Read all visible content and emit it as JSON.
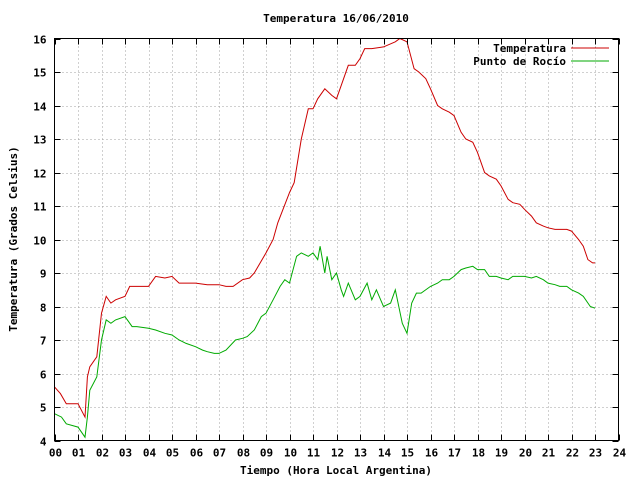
{
  "chart_data": {
    "type": "line",
    "title": "Temperatura 16/06/2010",
    "xlabel": "Tiempo (Hora Local Argentina)",
    "ylabel": "Temperatura (Grados Celsius)",
    "xlim": [
      0,
      24
    ],
    "ylim": [
      4,
      16
    ],
    "grid": true,
    "legend_position": "top-right",
    "x_ticks": [
      "00",
      "01",
      "02",
      "03",
      "04",
      "05",
      "06",
      "07",
      "08",
      "09",
      "10",
      "11",
      "12",
      "13",
      "14",
      "15",
      "16",
      "17",
      "18",
      "19",
      "20",
      "21",
      "22",
      "23",
      "24"
    ],
    "y_ticks": [
      "4",
      "5",
      "6",
      "7",
      "8",
      "9",
      "10",
      "11",
      "12",
      "13",
      "14",
      "15",
      "16"
    ],
    "series": [
      {
        "name": "Temperatura",
        "color": "#cc0000",
        "x": [
          0,
          0.25,
          0.5,
          1,
          1.3,
          1.4,
          1.5,
          1.8,
          2.0,
          2.2,
          2.4,
          2.6,
          3.0,
          3.2,
          3.5,
          4.0,
          4.3,
          4.7,
          5.0,
          5.3,
          6.0,
          6.5,
          7.0,
          7.3,
          7.6,
          8.0,
          8.3,
          8.5,
          9.0,
          9.3,
          9.5,
          10.0,
          10.2,
          10.5,
          10.8,
          11.0,
          11.2,
          11.5,
          11.8,
          12.0,
          12.3,
          12.5,
          12.8,
          13.0,
          13.2,
          13.5,
          14.0,
          14.5,
          14.7,
          15.0,
          15.3,
          15.5,
          15.8,
          16.0,
          16.3,
          16.5,
          16.8,
          17.0,
          17.3,
          17.5,
          17.8,
          18.0,
          18.3,
          18.5,
          18.8,
          19.0,
          19.3,
          19.5,
          19.8,
          20.0,
          20.3,
          20.5,
          20.8,
          21.0,
          21.3,
          21.5,
          21.8,
          22.0,
          22.3,
          22.5,
          22.7,
          22.9,
          23.0
        ],
        "values": [
          5.6,
          5.4,
          5.1,
          5.1,
          4.7,
          5.9,
          6.2,
          6.5,
          7.8,
          8.3,
          8.1,
          8.2,
          8.3,
          8.6,
          8.6,
          8.6,
          8.9,
          8.85,
          8.9,
          8.7,
          8.7,
          8.65,
          8.65,
          8.6,
          8.6,
          8.8,
          8.85,
          9.0,
          9.6,
          10.0,
          10.5,
          11.4,
          11.7,
          13.0,
          13.9,
          13.9,
          14.2,
          14.5,
          14.3,
          14.2,
          14.8,
          15.2,
          15.2,
          15.4,
          15.7,
          15.7,
          15.75,
          15.9,
          16.0,
          15.9,
          15.1,
          15.0,
          14.8,
          14.5,
          14.0,
          13.9,
          13.8,
          13.7,
          13.2,
          13.0,
          12.9,
          12.6,
          12.0,
          11.9,
          11.8,
          11.6,
          11.2,
          11.1,
          11.05,
          10.9,
          10.7,
          10.5,
          10.4,
          10.35,
          10.3,
          10.3,
          10.3,
          10.25,
          10.0,
          9.8,
          9.4,
          9.3,
          9.3
        ]
      },
      {
        "name": "Punto de Rocío",
        "color": "#00aa00",
        "x": [
          0,
          0.3,
          0.5,
          1.0,
          1.3,
          1.4,
          1.5,
          1.8,
          2.0,
          2.2,
          2.4,
          2.6,
          3.0,
          3.3,
          3.5,
          4.0,
          4.3,
          4.7,
          5.0,
          5.3,
          5.6,
          6.0,
          6.3,
          6.5,
          6.8,
          7.0,
          7.3,
          7.7,
          8.0,
          8.2,
          8.5,
          8.8,
          9.0,
          9.3,
          9.6,
          9.8,
          10.0,
          10.3,
          10.5,
          10.8,
          11.0,
          11.2,
          11.3,
          11.5,
          11.6,
          11.8,
          12.0,
          12.2,
          12.3,
          12.5,
          12.8,
          13.0,
          13.3,
          13.5,
          13.7,
          14.0,
          14.3,
          14.5,
          14.8,
          15.0,
          15.2,
          15.4,
          15.6,
          16.0,
          16.3,
          16.5,
          16.8,
          17.0,
          17.3,
          17.5,
          17.8,
          18.0,
          18.3,
          18.5,
          18.8,
          19.0,
          19.3,
          19.5,
          19.8,
          20.0,
          20.3,
          20.5,
          20.8,
          21.0,
          21.3,
          21.5,
          21.8,
          22.0,
          22.3,
          22.5,
          22.8,
          23.0
        ],
        "values": [
          4.8,
          4.7,
          4.5,
          4.4,
          4.1,
          4.7,
          5.5,
          5.9,
          7.0,
          7.6,
          7.5,
          7.6,
          7.7,
          7.4,
          7.4,
          7.35,
          7.3,
          7.2,
          7.15,
          7.0,
          6.9,
          6.8,
          6.7,
          6.65,
          6.6,
          6.6,
          6.7,
          7.0,
          7.05,
          7.1,
          7.3,
          7.7,
          7.8,
          8.2,
          8.6,
          8.8,
          8.7,
          9.5,
          9.6,
          9.5,
          9.6,
          9.4,
          9.8,
          9.0,
          9.5,
          8.8,
          9.0,
          8.5,
          8.3,
          8.7,
          8.2,
          8.3,
          8.7,
          8.2,
          8.5,
          8.0,
          8.1,
          8.5,
          7.5,
          7.2,
          8.1,
          8.4,
          8.4,
          8.6,
          8.7,
          8.8,
          8.8,
          8.9,
          9.1,
          9.15,
          9.2,
          9.1,
          9.1,
          8.9,
          8.9,
          8.85,
          8.8,
          8.9,
          8.9,
          8.9,
          8.85,
          8.9,
          8.8,
          8.7,
          8.65,
          8.6,
          8.6,
          8.5,
          8.4,
          8.3,
          8.0,
          7.95
        ]
      }
    ]
  }
}
